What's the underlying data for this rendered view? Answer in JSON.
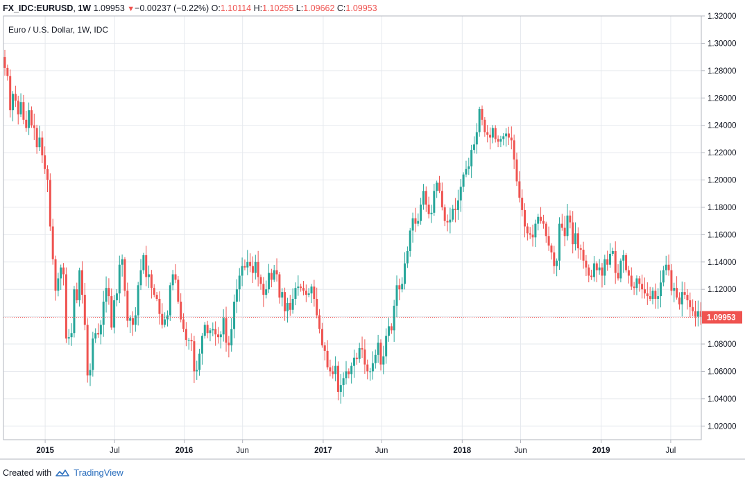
{
  "header": {
    "symbol": "FX_IDC:EURUSD",
    "interval": "1W",
    "last": "1.09953",
    "change": "−0.00237 (−0.22%)",
    "o_label": "O:",
    "o": "1.10114",
    "h_label": "H:",
    "h": "1.10255",
    "l_label": "L:",
    "l": "1.09662",
    "c_label": "C:",
    "c": "1.09953"
  },
  "footer": {
    "created_with": "Created with",
    "brand": "TradingView"
  },
  "colors": {
    "up": "#26a69a",
    "down": "#ef5350",
    "grid": "#e6e9ee",
    "axis": "#b2b5be",
    "text": "#131722",
    "priceline": "#ef5350"
  },
  "chart_data": {
    "type": "candlestick",
    "title": "Euro / U.S. Dollar, 1W, IDC",
    "ylim": [
      1.01,
      1.32
    ],
    "y_ticks": [
      "1.02000",
      "1.04000",
      "1.06000",
      "1.08000",
      "1.10000",
      "1.12000",
      "1.14000",
      "1.16000",
      "1.18000",
      "1.20000",
      "1.22000",
      "1.24000",
      "1.26000",
      "1.28000",
      "1.30000",
      "1.32000"
    ],
    "x_range": [
      2014.7,
      2019.72
    ],
    "x_ticks": [
      {
        "t": 2015.0,
        "label": "2015",
        "bold": true
      },
      {
        "t": 2015.5,
        "label": "Jul",
        "bold": false
      },
      {
        "t": 2016.0,
        "label": "2016",
        "bold": true
      },
      {
        "t": 2016.42,
        "label": "Jun",
        "bold": false
      },
      {
        "t": 2017.0,
        "label": "2017",
        "bold": true
      },
      {
        "t": 2017.42,
        "label": "Jun",
        "bold": false
      },
      {
        "t": 2018.0,
        "label": "2018",
        "bold": true
      },
      {
        "t": 2018.42,
        "label": "Jun",
        "bold": false
      },
      {
        "t": 2019.0,
        "label": "2019",
        "bold": true
      },
      {
        "t": 2019.5,
        "label": "Jul",
        "bold": false
      }
    ],
    "last_price": 1.09953,
    "last_label": "1.09953",
    "start": 2014.71,
    "week": 0.01918,
    "closes": [
      1.282,
      1.276,
      1.251,
      1.263,
      1.258,
      1.248,
      1.257,
      1.244,
      1.238,
      1.251,
      1.24,
      1.238,
      1.224,
      1.231,
      1.218,
      1.208,
      1.2,
      1.166,
      1.142,
      1.119,
      1.128,
      1.136,
      1.131,
      1.084,
      1.085,
      1.088,
      1.12,
      1.112,
      1.134,
      1.116,
      1.094,
      1.057,
      1.061,
      1.084,
      1.088,
      1.087,
      1.094,
      1.111,
      1.121,
      1.115,
      1.092,
      1.112,
      1.117,
      1.138,
      1.142,
      1.119,
      1.097,
      1.099,
      1.094,
      1.101,
      1.123,
      1.134,
      1.145,
      1.129,
      1.131,
      1.121,
      1.116,
      1.113,
      1.102,
      1.094,
      1.098,
      1.101,
      1.123,
      1.131,
      1.127,
      1.111,
      1.098,
      1.091,
      1.083,
      1.083,
      1.082,
      1.06,
      1.061,
      1.073,
      1.086,
      1.094,
      1.088,
      1.09,
      1.091,
      1.087,
      1.085,
      1.087,
      1.099,
      1.081,
      1.079,
      1.091,
      1.111,
      1.12,
      1.13,
      1.137,
      1.136,
      1.14,
      1.137,
      1.132,
      1.14,
      1.129,
      1.124,
      1.116,
      1.12,
      1.132,
      1.127,
      1.134,
      1.131,
      1.114,
      1.118,
      1.104,
      1.11,
      1.105,
      1.113,
      1.121,
      1.122,
      1.121,
      1.119,
      1.116,
      1.117,
      1.122,
      1.113,
      1.101,
      1.091,
      1.079,
      1.075,
      1.063,
      1.06,
      1.058,
      1.064,
      1.045,
      1.05,
      1.055,
      1.06,
      1.058,
      1.064,
      1.07,
      1.069,
      1.077,
      1.076,
      1.065,
      1.06,
      1.06,
      1.066,
      1.072,
      1.081,
      1.065,
      1.071,
      1.086,
      1.093,
      1.09,
      1.108,
      1.123,
      1.12,
      1.124,
      1.139,
      1.148,
      1.163,
      1.172,
      1.168,
      1.17,
      1.182,
      1.192,
      1.182,
      1.175,
      1.176,
      1.192,
      1.198,
      1.192,
      1.18,
      1.17,
      1.169,
      1.171,
      1.179,
      1.178,
      1.185,
      1.195,
      1.204,
      1.208,
      1.21,
      1.222,
      1.226,
      1.235,
      1.252,
      1.244,
      1.235,
      1.233,
      1.231,
      1.238,
      1.23,
      1.228,
      1.23,
      1.232,
      1.234,
      1.231,
      1.229,
      1.215,
      1.199,
      1.187,
      1.178,
      1.166,
      1.161,
      1.16,
      1.158,
      1.168,
      1.173,
      1.17,
      1.168,
      1.159,
      1.152,
      1.147,
      1.137,
      1.141,
      1.168,
      1.165,
      1.159,
      1.174,
      1.169,
      1.153,
      1.161,
      1.15,
      1.149,
      1.141,
      1.136,
      1.13,
      1.129,
      1.139,
      1.134,
      1.136,
      1.13,
      1.142,
      1.138,
      1.146,
      1.148,
      1.132,
      1.128,
      1.141,
      1.145,
      1.134,
      1.13,
      1.122,
      1.121,
      1.128,
      1.124,
      1.12,
      1.117,
      1.115,
      1.113,
      1.119,
      1.113,
      1.115,
      1.125,
      1.134,
      1.138,
      1.134,
      1.119,
      1.121,
      1.114,
      1.109,
      1.118,
      1.116,
      1.112,
      1.107,
      1.104,
      1.1,
      1.104,
      1.1
    ]
  }
}
